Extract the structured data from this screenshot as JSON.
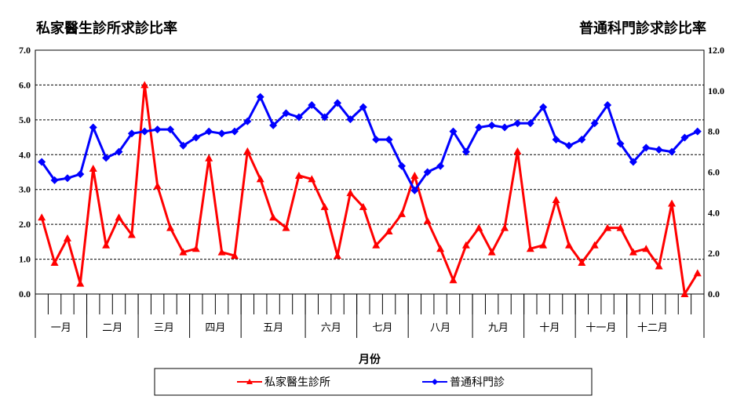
{
  "titles": {
    "left": "私家醫生診所求診比率",
    "right": "普通科門診求診比率"
  },
  "colors": {
    "red": "#ff0000",
    "blue": "#0000ff"
  },
  "chart_data": {
    "type": "line",
    "xlabel": "月份",
    "y_left": {
      "label": "私家醫生診所求診比率",
      "range": [
        0,
        7
      ],
      "ticks": [
        "0.0",
        "1.0",
        "2.0",
        "3.0",
        "4.0",
        "5.0",
        "6.0",
        "7.0"
      ]
    },
    "y_right": {
      "label": "普通科門診求診比率",
      "range": [
        0,
        12
      ],
      "ticks": [
        "0.0",
        "2.0",
        "4.0",
        "6.0",
        "8.0",
        "10.0",
        "12.0"
      ]
    },
    "months": [
      {
        "label": "一月",
        "weeks": 4
      },
      {
        "label": "二月",
        "weeks": 4
      },
      {
        "label": "三月",
        "weeks": 4
      },
      {
        "label": "四月",
        "weeks": 4
      },
      {
        "label": "五月",
        "weeks": 5
      },
      {
        "label": "六月",
        "weeks": 4
      },
      {
        "label": "七月",
        "weeks": 4
      },
      {
        "label": "八月",
        "weeks": 5
      },
      {
        "label": "九月",
        "weeks": 4
      },
      {
        "label": "十月",
        "weeks": 4
      },
      {
        "label": "十一月",
        "weeks": 4
      },
      {
        "label": "十二月",
        "weeks": 4
      }
    ],
    "grid": "horizontal dashed",
    "legend_position": "bottom",
    "series": [
      {
        "name": "私家醫生診所",
        "axis": "left",
        "color": "#ff0000",
        "marker": "triangle",
        "values": [
          2.2,
          0.9,
          1.6,
          0.3,
          3.6,
          1.4,
          2.2,
          1.7,
          6.0,
          3.1,
          1.9,
          1.2,
          1.3,
          3.9,
          1.2,
          1.1,
          4.1,
          3.3,
          2.2,
          1.9,
          3.4,
          3.3,
          2.5,
          1.1,
          2.9,
          2.5,
          1.4,
          1.8,
          2.3,
          3.4,
          2.1,
          1.3,
          0.4,
          1.4,
          1.9,
          1.2,
          1.9,
          4.1,
          1.3,
          1.4,
          2.7,
          1.4,
          0.9,
          1.4,
          1.9,
          1.9,
          1.2,
          1.3,
          0.8,
          2.6,
          0.0,
          0.6
        ]
      },
      {
        "name": "普通科門診",
        "axis": "right",
        "color": "#0000ff",
        "marker": "diamond",
        "values": [
          6.5,
          5.6,
          5.7,
          5.9,
          8.2,
          6.7,
          7.0,
          7.9,
          8.0,
          8.1,
          8.1,
          7.3,
          7.7,
          8.0,
          7.9,
          8.0,
          8.5,
          9.7,
          8.3,
          8.9,
          8.7,
          9.3,
          8.7,
          9.4,
          8.6,
          9.2,
          7.6,
          7.6,
          6.3,
          5.1,
          6.0,
          6.3,
          8.0,
          7.0,
          8.2,
          8.3,
          8.2,
          8.4,
          8.4,
          9.2,
          7.6,
          7.3,
          7.6,
          8.4,
          9.3,
          7.4,
          6.5,
          7.2,
          7.1,
          7.0,
          7.7,
          8.0
        ]
      }
    ]
  }
}
